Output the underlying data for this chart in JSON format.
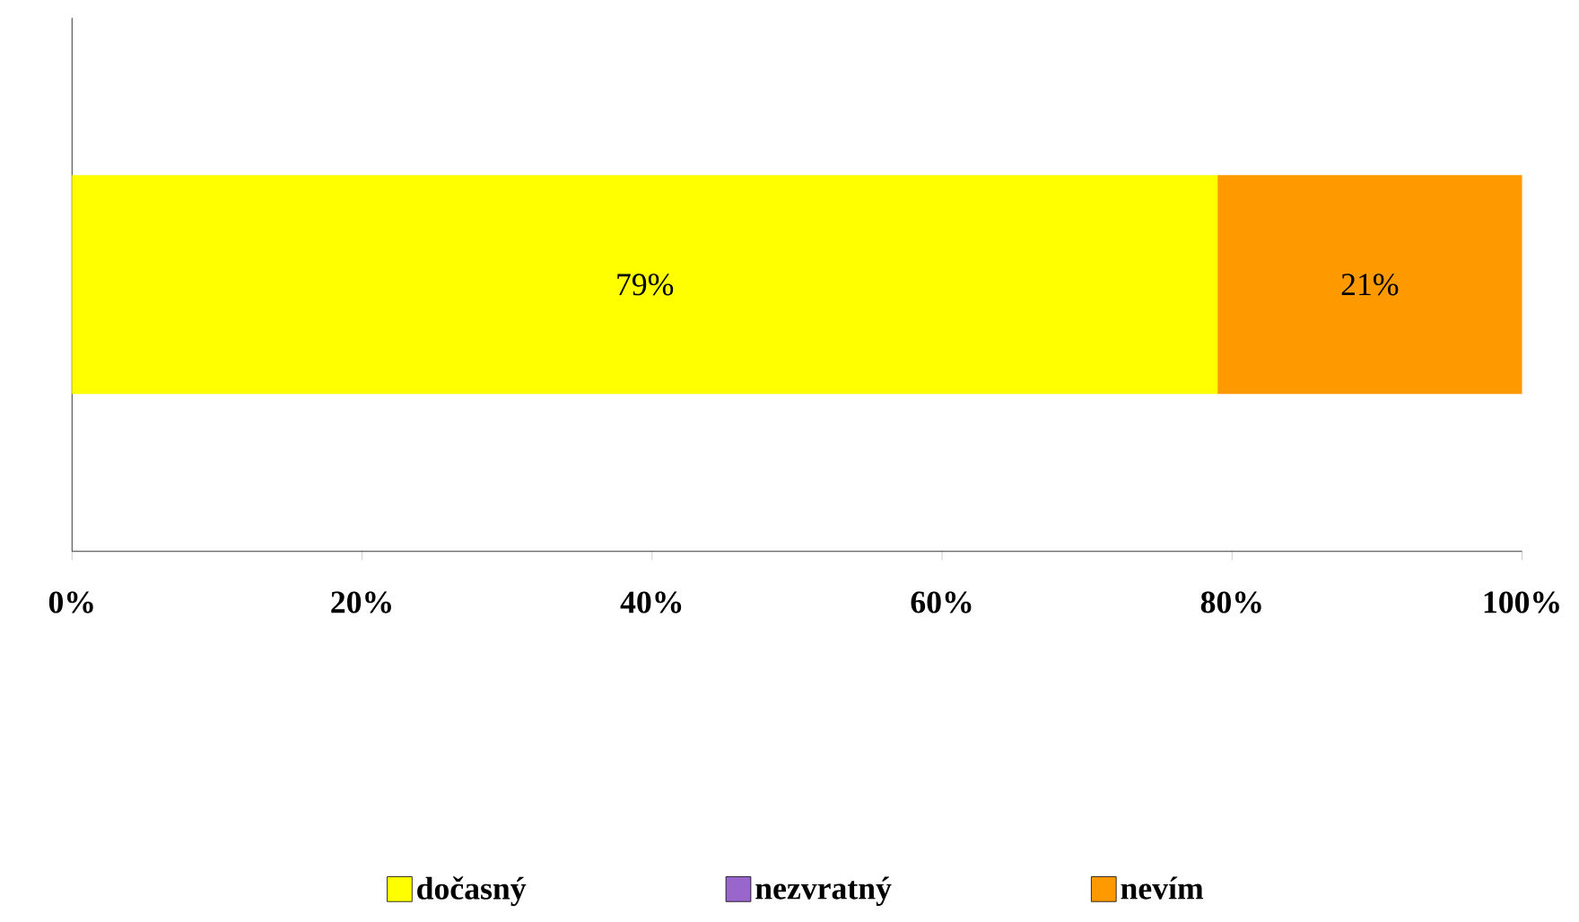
{
  "chart_data": {
    "type": "bar",
    "orientation": "horizontal",
    "stacked": true,
    "categories": [
      null
    ],
    "series": [
      {
        "name": "dočasný",
        "color": "#ffff00",
        "values": [
          79
        ],
        "value_labels": [
          "79%"
        ]
      },
      {
        "name": "nezvratný",
        "color": "#9966cc",
        "values": [
          0
        ],
        "value_labels": [
          null
        ]
      },
      {
        "name": "nevím",
        "color": "#ff9900",
        "values": [
          21
        ],
        "value_labels": [
          "21%"
        ]
      }
    ],
    "xlim": [
      0,
      100
    ],
    "xticks": [
      {
        "value": 0,
        "label": "0%"
      },
      {
        "value": 20,
        "label": "20%"
      },
      {
        "value": 40,
        "label": "40%"
      },
      {
        "value": 60,
        "label": "60%"
      },
      {
        "value": 80,
        "label": "80%"
      },
      {
        "value": 100,
        "label": "100%"
      }
    ],
    "grid": false,
    "legend": "bottom"
  }
}
